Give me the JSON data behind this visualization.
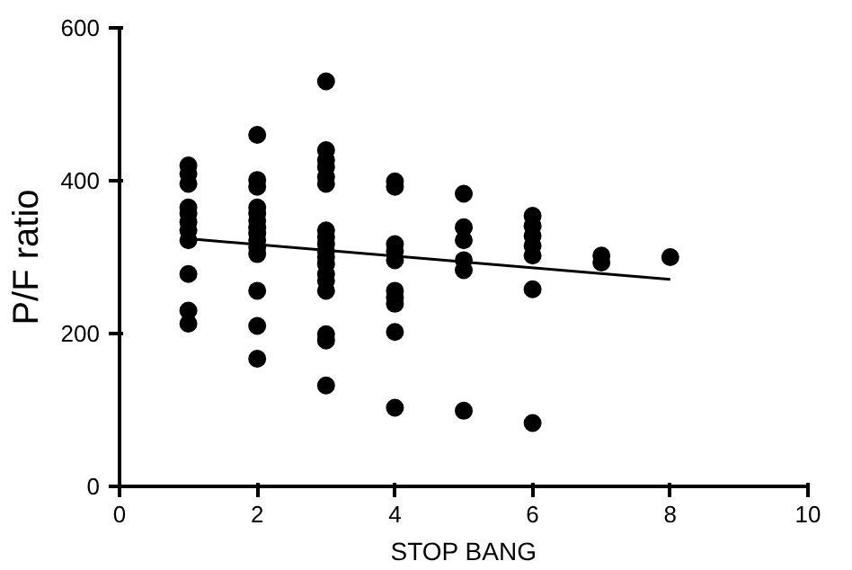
{
  "chart_data": {
    "type": "scatter",
    "xlabel": "STOP BANG",
    "ylabel": "P/F ratio",
    "xlim": [
      0,
      10
    ],
    "ylim": [
      0,
      600
    ],
    "xticks": [
      0,
      2,
      4,
      6,
      8,
      10
    ],
    "yticks": [
      0,
      200,
      400,
      600
    ],
    "grid": false,
    "marker": "circle",
    "series": [
      {
        "color": "#000000",
        "x": [
          1,
          1,
          1,
          1,
          1,
          1,
          1,
          1,
          1,
          1,
          1,
          2,
          2,
          2,
          2,
          2,
          2,
          2,
          2,
          2,
          2,
          2,
          2,
          2,
          2,
          3,
          3,
          3,
          3,
          3,
          3,
          3,
          3,
          3,
          3,
          3,
          3,
          3,
          3,
          3,
          3,
          3,
          3,
          4,
          4,
          4,
          4,
          4,
          4,
          4,
          4,
          4,
          4,
          5,
          5,
          5,
          5,
          5,
          5,
          6,
          6,
          6,
          6,
          6,
          6,
          6,
          7,
          7,
          8
        ],
        "values": [
          420,
          409,
          396,
          365,
          357,
          346,
          335,
          322,
          278,
          230,
          213,
          460,
          401,
          392,
          365,
          357,
          348,
          339,
          331,
          322,
          313,
          304,
          256,
          210,
          167,
          530,
          440,
          427,
          418,
          405,
          396,
          335,
          326,
          317,
          308,
          300,
          291,
          278,
          269,
          256,
          199,
          191,
          132,
          399,
          392,
          317,
          308,
          296,
          256,
          247,
          239,
          202,
          103,
          383,
          339,
          322,
          296,
          283,
          99,
          354,
          341,
          328,
          315,
          302,
          258,
          83,
          302,
          293,
          300
        ]
      },
      {
        "type": "line",
        "marker": "none",
        "color": "#000000",
        "x": [
          1,
          8
        ],
        "values": [
          324,
          271
        ]
      }
    ]
  }
}
